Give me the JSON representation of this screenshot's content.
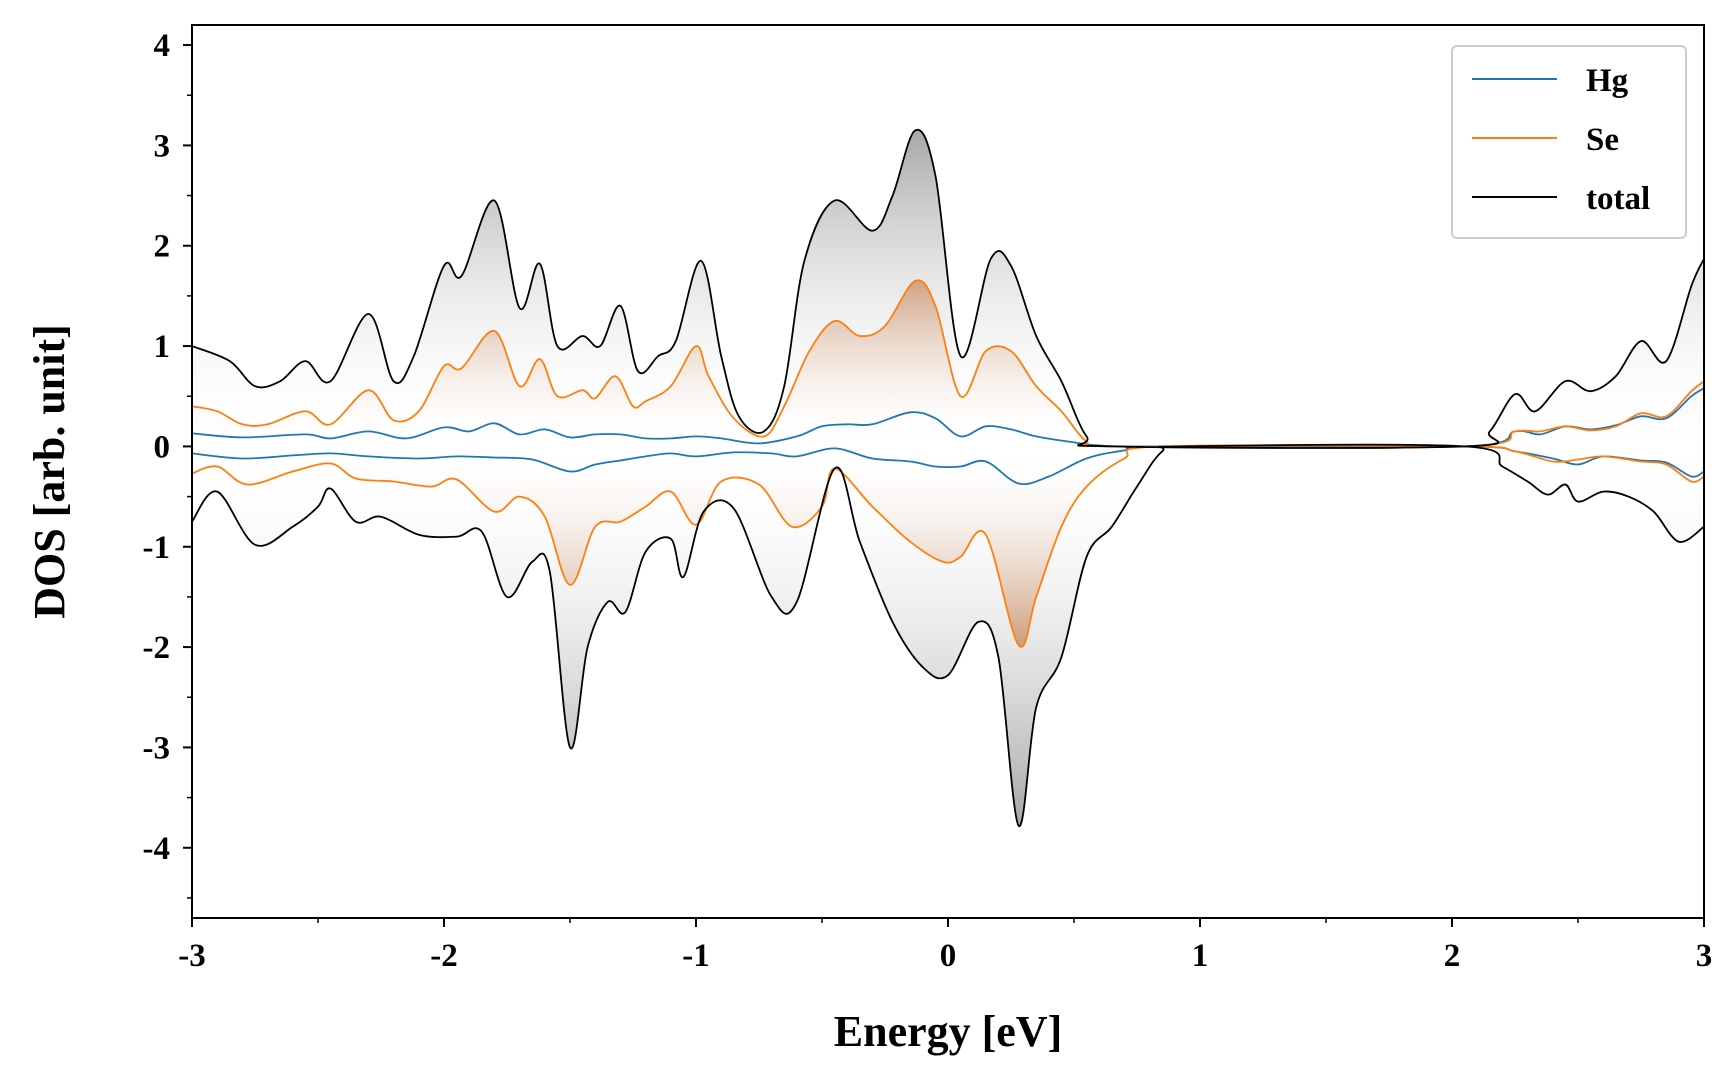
{
  "chart_data": {
    "type": "area",
    "title": "",
    "xlabel": "Energy [eV]",
    "ylabel": "DOS [arb. unit]",
    "xlim": [
      -3,
      3
    ],
    "ylim": [
      -4.7,
      4.2
    ],
    "xticks": [
      -3,
      -2,
      -1,
      0,
      1,
      2,
      3
    ],
    "xtick_labels": [
      "-3",
      "-2",
      "-1",
      "0",
      "1",
      "2",
      "3"
    ],
    "yticks": [
      -4,
      -3,
      -2,
      -1,
      0,
      1,
      2,
      3,
      4
    ],
    "ytick_labels": [
      "-4",
      "-3",
      "-2",
      "-1",
      "0",
      "1",
      "2",
      "3",
      "4"
    ],
    "legend_position": "top-right",
    "series": [
      {
        "name": "Hg",
        "color": "#1f77b4",
        "spin_up": [
          [
            -3,
            0.13
          ],
          [
            -2.8,
            0.09
          ],
          [
            -2.55,
            0.12
          ],
          [
            -2.45,
            0.08
          ],
          [
            -2.3,
            0.15
          ],
          [
            -2.15,
            0.08
          ],
          [
            -2,
            0.19
          ],
          [
            -1.9,
            0.15
          ],
          [
            -1.8,
            0.23
          ],
          [
            -1.7,
            0.12
          ],
          [
            -1.6,
            0.17
          ],
          [
            -1.5,
            0.09
          ],
          [
            -1.4,
            0.12
          ],
          [
            -1.3,
            0.12
          ],
          [
            -1.2,
            0.08
          ],
          [
            -1.1,
            0.08
          ],
          [
            -1,
            0.1
          ],
          [
            -0.9,
            0.08
          ],
          [
            -0.75,
            0.03
          ],
          [
            -0.6,
            0.1
          ],
          [
            -0.5,
            0.2
          ],
          [
            -0.4,
            0.22
          ],
          [
            -0.3,
            0.22
          ],
          [
            -0.15,
            0.34
          ],
          [
            -0.05,
            0.28
          ],
          [
            0.05,
            0.1
          ],
          [
            0.15,
            0.2
          ],
          [
            0.25,
            0.17
          ],
          [
            0.35,
            0.1
          ],
          [
            0.5,
            0.04
          ],
          [
            0.6,
            0.01
          ],
          [
            0.8,
            0
          ],
          [
            2.05,
            0
          ],
          [
            2.25,
            0.15
          ],
          [
            2.35,
            0.12
          ],
          [
            2.45,
            0.2
          ],
          [
            2.55,
            0.17
          ],
          [
            2.65,
            0.21
          ],
          [
            2.75,
            0.3
          ],
          [
            2.85,
            0.28
          ],
          [
            2.95,
            0.5
          ],
          [
            3,
            0.58
          ]
        ],
        "spin_down": [
          [
            -3,
            -0.07
          ],
          [
            -2.8,
            -0.12
          ],
          [
            -2.6,
            -0.09
          ],
          [
            -2.45,
            -0.07
          ],
          [
            -2.3,
            -0.1
          ],
          [
            -2.1,
            -0.12
          ],
          [
            -1.95,
            -0.1
          ],
          [
            -1.8,
            -0.11
          ],
          [
            -1.65,
            -0.13
          ],
          [
            -1.5,
            -0.25
          ],
          [
            -1.4,
            -0.18
          ],
          [
            -1.3,
            -0.14
          ],
          [
            -1.2,
            -0.1
          ],
          [
            -1.1,
            -0.07
          ],
          [
            -1,
            -0.1
          ],
          [
            -0.85,
            -0.06
          ],
          [
            -0.7,
            -0.07
          ],
          [
            -0.6,
            -0.1
          ],
          [
            -0.45,
            -0.02
          ],
          [
            -0.3,
            -0.12
          ],
          [
            -0.15,
            -0.15
          ],
          [
            -0.05,
            -0.2
          ],
          [
            0.05,
            -0.2
          ],
          [
            0.15,
            -0.15
          ],
          [
            0.28,
            -0.37
          ],
          [
            0.4,
            -0.3
          ],
          [
            0.55,
            -0.12
          ],
          [
            0.7,
            -0.04
          ],
          [
            0.85,
            0
          ],
          [
            2.05,
            0
          ],
          [
            2.25,
            -0.05
          ],
          [
            2.4,
            -0.12
          ],
          [
            2.5,
            -0.18
          ],
          [
            2.6,
            -0.1
          ],
          [
            2.75,
            -0.14
          ],
          [
            2.85,
            -0.16
          ],
          [
            2.95,
            -0.3
          ],
          [
            3,
            -0.25
          ]
        ]
      },
      {
        "name": "Se",
        "color": "#ff7f0e",
        "spin_up": [
          [
            -3,
            0.4
          ],
          [
            -2.9,
            0.35
          ],
          [
            -2.8,
            0.22
          ],
          [
            -2.7,
            0.22
          ],
          [
            -2.55,
            0.35
          ],
          [
            -2.45,
            0.22
          ],
          [
            -2.3,
            0.56
          ],
          [
            -2.2,
            0.26
          ],
          [
            -2.1,
            0.35
          ],
          [
            -2,
            0.8
          ],
          [
            -1.93,
            0.78
          ],
          [
            -1.8,
            1.15
          ],
          [
            -1.7,
            0.6
          ],
          [
            -1.62,
            0.87
          ],
          [
            -1.55,
            0.5
          ],
          [
            -1.45,
            0.56
          ],
          [
            -1.4,
            0.48
          ],
          [
            -1.32,
            0.7
          ],
          [
            -1.25,
            0.4
          ],
          [
            -1.2,
            0.45
          ],
          [
            -1.1,
            0.6
          ],
          [
            -1,
            1
          ],
          [
            -0.95,
            0.7
          ],
          [
            -0.85,
            0.28
          ],
          [
            -0.73,
            0.1
          ],
          [
            -0.65,
            0.4
          ],
          [
            -0.55,
            0.95
          ],
          [
            -0.45,
            1.25
          ],
          [
            -0.35,
            1.1
          ],
          [
            -0.25,
            1.2
          ],
          [
            -0.13,
            1.65
          ],
          [
            -0.05,
            1.4
          ],
          [
            0.05,
            0.5
          ],
          [
            0.15,
            0.95
          ],
          [
            0.25,
            0.95
          ],
          [
            0.35,
            0.6
          ],
          [
            0.45,
            0.35
          ],
          [
            0.55,
            0.05
          ],
          [
            0.65,
            0
          ],
          [
            2.05,
            0
          ],
          [
            2.25,
            0.15
          ],
          [
            2.35,
            0.15
          ],
          [
            2.45,
            0.2
          ],
          [
            2.55,
            0.16
          ],
          [
            2.65,
            0.2
          ],
          [
            2.75,
            0.33
          ],
          [
            2.85,
            0.3
          ],
          [
            2.95,
            0.55
          ],
          [
            3,
            0.65
          ]
        ],
        "spin_down": [
          [
            -3,
            -0.27
          ],
          [
            -2.9,
            -0.2
          ],
          [
            -2.78,
            -0.38
          ],
          [
            -2.6,
            -0.25
          ],
          [
            -2.45,
            -0.17
          ],
          [
            -2.35,
            -0.32
          ],
          [
            -2.2,
            -0.35
          ],
          [
            -2.05,
            -0.4
          ],
          [
            -1.95,
            -0.33
          ],
          [
            -1.8,
            -0.65
          ],
          [
            -1.7,
            -0.5
          ],
          [
            -1.6,
            -0.7
          ],
          [
            -1.5,
            -1.38
          ],
          [
            -1.4,
            -0.8
          ],
          [
            -1.3,
            -0.75
          ],
          [
            -1.2,
            -0.6
          ],
          [
            -1.1,
            -0.45
          ],
          [
            -1,
            -0.78
          ],
          [
            -0.9,
            -0.35
          ],
          [
            -0.75,
            -0.38
          ],
          [
            -0.62,
            -0.8
          ],
          [
            -0.5,
            -0.6
          ],
          [
            -0.45,
            -0.22
          ],
          [
            -0.3,
            -0.6
          ],
          [
            -0.15,
            -0.95
          ],
          [
            -0.02,
            -1.15
          ],
          [
            0.05,
            -1.1
          ],
          [
            0.15,
            -0.88
          ],
          [
            0.28,
            -1.98
          ],
          [
            0.35,
            -1.5
          ],
          [
            0.45,
            -0.8
          ],
          [
            0.55,
            -0.4
          ],
          [
            0.7,
            -0.12
          ],
          [
            0.85,
            0
          ],
          [
            2.05,
            0
          ],
          [
            2.25,
            -0.05
          ],
          [
            2.4,
            -0.15
          ],
          [
            2.5,
            -0.13
          ],
          [
            2.6,
            -0.1
          ],
          [
            2.75,
            -0.15
          ],
          [
            2.85,
            -0.18
          ],
          [
            2.95,
            -0.35
          ],
          [
            3,
            -0.3
          ]
        ]
      },
      {
        "name": "total",
        "color": "#000000",
        "spin_up": [
          [
            -3,
            1
          ],
          [
            -2.85,
            0.85
          ],
          [
            -2.75,
            0.6
          ],
          [
            -2.65,
            0.65
          ],
          [
            -2.55,
            0.85
          ],
          [
            -2.45,
            0.65
          ],
          [
            -2.3,
            1.32
          ],
          [
            -2.2,
            0.65
          ],
          [
            -2.12,
            0.9
          ],
          [
            -2,
            1.8
          ],
          [
            -1.93,
            1.7
          ],
          [
            -1.8,
            2.45
          ],
          [
            -1.7,
            1.38
          ],
          [
            -1.62,
            1.82
          ],
          [
            -1.55,
            1
          ],
          [
            -1.45,
            1.1
          ],
          [
            -1.38,
            1
          ],
          [
            -1.3,
            1.4
          ],
          [
            -1.23,
            0.75
          ],
          [
            -1.15,
            0.9
          ],
          [
            -1.08,
            1.05
          ],
          [
            -0.98,
            1.85
          ],
          [
            -0.9,
            0.9
          ],
          [
            -0.83,
            0.3
          ],
          [
            -0.73,
            0.15
          ],
          [
            -0.65,
            0.6
          ],
          [
            -0.57,
            1.85
          ],
          [
            -0.45,
            2.45
          ],
          [
            -0.3,
            2.15
          ],
          [
            -0.22,
            2.5
          ],
          [
            -0.13,
            3.15
          ],
          [
            -0.05,
            2.7
          ],
          [
            0.05,
            0.9
          ],
          [
            0.17,
            1.87
          ],
          [
            0.25,
            1.8
          ],
          [
            0.35,
            1.1
          ],
          [
            0.45,
            0.65
          ],
          [
            0.55,
            0.1
          ],
          [
            0.65,
            0
          ],
          [
            2.05,
            0
          ],
          [
            2.15,
            0.15
          ],
          [
            2.25,
            0.52
          ],
          [
            2.33,
            0.35
          ],
          [
            2.45,
            0.65
          ],
          [
            2.55,
            0.55
          ],
          [
            2.65,
            0.7
          ],
          [
            2.75,
            1.05
          ],
          [
            2.85,
            0.85
          ],
          [
            2.95,
            1.6
          ],
          [
            3,
            1.87
          ]
        ],
        "spin_down": [
          [
            -3,
            -0.75
          ],
          [
            -2.9,
            -0.45
          ],
          [
            -2.75,
            -0.98
          ],
          [
            -2.6,
            -0.8
          ],
          [
            -2.5,
            -0.6
          ],
          [
            -2.45,
            -0.42
          ],
          [
            -2.35,
            -0.75
          ],
          [
            -2.25,
            -0.7
          ],
          [
            -2.1,
            -0.88
          ],
          [
            -1.95,
            -0.9
          ],
          [
            -1.85,
            -0.85
          ],
          [
            -1.75,
            -1.5
          ],
          [
            -1.65,
            -1.15
          ],
          [
            -1.58,
            -1.25
          ],
          [
            -1.5,
            -3
          ],
          [
            -1.43,
            -2
          ],
          [
            -1.35,
            -1.55
          ],
          [
            -1.28,
            -1.65
          ],
          [
            -1.2,
            -1.05
          ],
          [
            -1.1,
            -0.92
          ],
          [
            -1.05,
            -1.3
          ],
          [
            -0.97,
            -0.65
          ],
          [
            -0.85,
            -0.62
          ],
          [
            -0.7,
            -1.5
          ],
          [
            -0.6,
            -1.55
          ],
          [
            -0.45,
            -0.22
          ],
          [
            -0.35,
            -0.95
          ],
          [
            -0.22,
            -1.75
          ],
          [
            -0.1,
            -2.2
          ],
          [
            0,
            -2.28
          ],
          [
            0.12,
            -1.75
          ],
          [
            0.2,
            -2.1
          ],
          [
            0.28,
            -3.78
          ],
          [
            0.35,
            -2.6
          ],
          [
            0.45,
            -2.1
          ],
          [
            0.55,
            -1.1
          ],
          [
            0.65,
            -0.8
          ],
          [
            0.75,
            -0.4
          ],
          [
            0.85,
            -0.05
          ],
          [
            0.95,
            0
          ],
          [
            2.05,
            0
          ],
          [
            2.2,
            -0.2
          ],
          [
            2.3,
            -0.35
          ],
          [
            2.38,
            -0.48
          ],
          [
            2.45,
            -0.38
          ],
          [
            2.5,
            -0.55
          ],
          [
            2.6,
            -0.45
          ],
          [
            2.7,
            -0.5
          ],
          [
            2.8,
            -0.65
          ],
          [
            2.9,
            -0.95
          ],
          [
            3,
            -0.8
          ]
        ]
      }
    ]
  }
}
